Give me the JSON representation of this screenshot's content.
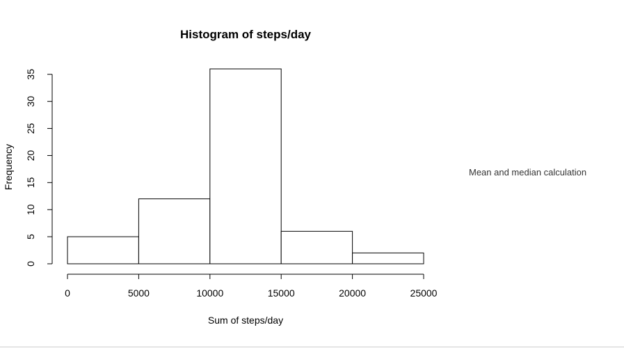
{
  "chart_data": {
    "type": "bar",
    "title": "Histogram of steps/day",
    "xlabel": "Sum of steps/day",
    "ylabel": "Frequency",
    "bins": [
      {
        "from": 0,
        "to": 5000,
        "count": 5
      },
      {
        "from": 5000,
        "to": 10000,
        "count": 12
      },
      {
        "from": 10000,
        "to": 15000,
        "count": 36
      },
      {
        "from": 15000,
        "to": 20000,
        "count": 6
      },
      {
        "from": 20000,
        "to": 25000,
        "count": 2
      }
    ],
    "xlim": [
      0,
      25000
    ],
    "ylim": [
      0,
      36
    ],
    "x_ticks": [
      0,
      5000,
      10000,
      15000,
      20000,
      25000
    ],
    "y_ticks": [
      0,
      5,
      10,
      15,
      20,
      25,
      30,
      35
    ],
    "grid": false,
    "colors": {
      "bar_fill": "#ffffff",
      "bar_stroke": "#000000"
    }
  },
  "side_note": "Mean and median calculation"
}
